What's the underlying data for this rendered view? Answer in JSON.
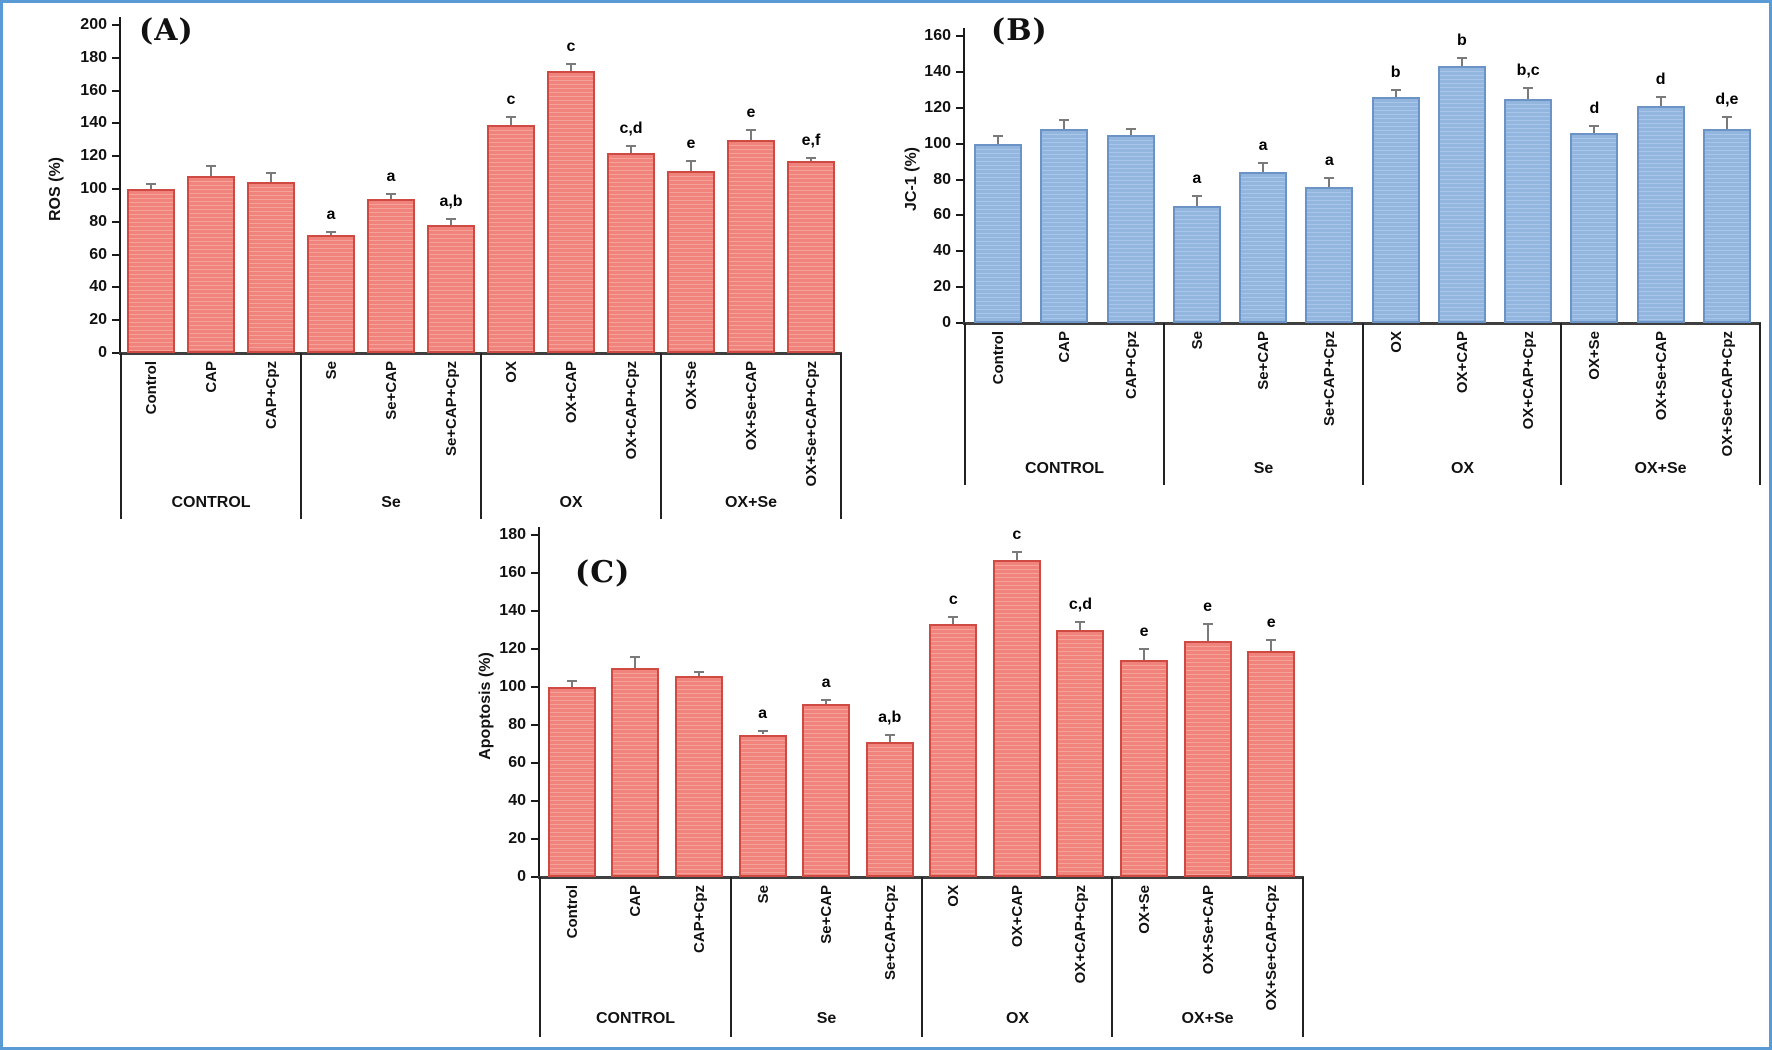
{
  "figure": {
    "description": "Three-panel bar figure with significance letters",
    "group_labels": [
      "CONTROL",
      "Se",
      "OX",
      "OX+Se"
    ]
  },
  "colors": {
    "frame_border": "#5B9BD5",
    "red_fill": "#F0837B",
    "red_stripe": "#F5A29B",
    "red_border": "#CE4A42",
    "blue_fill": "#93B6DF",
    "blue_stripe": "#A9C5EA",
    "blue_border": "#6B93C5",
    "error_bar": "#7a7a7a",
    "axis": "#3f3f3f"
  },
  "chart_data": [
    {
      "type": "bar",
      "panel_label": "(A)",
      "ylabel": "ROS (%)",
      "ylim": [
        0,
        200
      ],
      "ytick_step": 20,
      "grid": false,
      "legend": "none",
      "bar_color": "red",
      "categories": [
        "Control",
        "CAP",
        "CAP+Cpz",
        "Se",
        "Se+CAP",
        "Se+CAP+Cpz",
        "OX",
        "OX+CAP",
        "OX+CAP+Cpz",
        "OX+Se",
        "OX+Se+CAP",
        "OX+Se+CAP+Cpz"
      ],
      "values": [
        100,
        108,
        104,
        72,
        94,
        78,
        139,
        172,
        122,
        111,
        130,
        117
      ],
      "errors": [
        3,
        6,
        6,
        2,
        3,
        4,
        5,
        4,
        4,
        6,
        6,
        2
      ],
      "sig_labels": [
        "",
        "",
        "",
        "a",
        "a",
        "a,b",
        "c",
        "c",
        "c,d",
        "e",
        "e",
        "e,f"
      ],
      "group_labels": [
        "CONTROL",
        "Se",
        "OX",
        "OX+Se"
      ],
      "group_size": 3
    },
    {
      "type": "bar",
      "panel_label": "(B)",
      "ylabel": "JC-1 (%)",
      "ylim": [
        0,
        160
      ],
      "ytick_step": 20,
      "grid": false,
      "legend": "none",
      "bar_color": "blue",
      "categories": [
        "Control",
        "CAP",
        "CAP+Cpz",
        "Se",
        "Se+CAP",
        "Se+CAP+Cpz",
        "OX",
        "OX+CAP",
        "OX+CAP+Cpz",
        "OX+Se",
        "OX+Se+CAP",
        "OX+Se+CAP+Cpz"
      ],
      "values": [
        100,
        108,
        105,
        65,
        84,
        76,
        126,
        143,
        125,
        106,
        121,
        108
      ],
      "errors": [
        4,
        5,
        3,
        6,
        5,
        5,
        4,
        5,
        6,
        4,
        5,
        7
      ],
      "sig_labels": [
        "",
        "",
        "",
        "a",
        "a",
        "a",
        "b",
        "b",
        "b,c",
        "d",
        "d",
        "d,e"
      ],
      "group_labels": [
        "CONTROL",
        "Se",
        "OX",
        "OX+Se"
      ],
      "group_size": 3
    },
    {
      "type": "bar",
      "panel_label": "(C)",
      "ylabel": "Apoptosis (%)",
      "ylim": [
        0,
        180
      ],
      "ytick_step": 20,
      "grid": false,
      "legend": "none",
      "bar_color": "red",
      "categories": [
        "Control",
        "CAP",
        "CAP+Cpz",
        "Se",
        "Se+CAP",
        "Se+CAP+Cpz",
        "OX",
        "OX+CAP",
        "OX+CAP+Cpz",
        "OX+Se",
        "OX+Se+CAP",
        "OX+Se+CAP+Cpz"
      ],
      "values": [
        100,
        110,
        106,
        75,
        91,
        71,
        133,
        167,
        130,
        114,
        124,
        119
      ],
      "errors": [
        3,
        6,
        2,
        2,
        2,
        4,
        4,
        4,
        4,
        6,
        9,
        6
      ],
      "sig_labels": [
        "",
        "",
        "",
        "a",
        "a",
        "a,b",
        "c",
        "c",
        "c,d",
        "e",
        "e",
        "e"
      ],
      "group_labels": [
        "CONTROL",
        "Se",
        "OX",
        "OX+Se"
      ],
      "group_size": 3
    }
  ]
}
